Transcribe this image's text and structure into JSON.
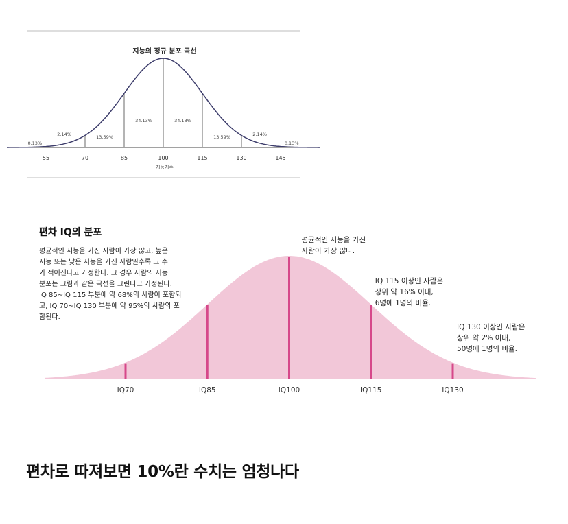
{
  "chart_data": [
    {
      "type": "area",
      "title": "지능의 정규 분포 곡선",
      "xlabel": "지능지수",
      "x_ticks": [
        55,
        70,
        85,
        100,
        115,
        130,
        145
      ],
      "x_range": [
        40,
        160
      ],
      "mean": 100,
      "sd": 15,
      "band_percentages": [
        {
          "from": 40,
          "to": 55,
          "label": "0.13%"
        },
        {
          "from": 55,
          "to": 70,
          "label": "2.14%"
        },
        {
          "from": 70,
          "to": 85,
          "label": "13.59%"
        },
        {
          "from": 85,
          "to": 100,
          "label": "34.13%"
        },
        {
          "from": 100,
          "to": 115,
          "label": "34.13%"
        },
        {
          "from": 115,
          "to": 130,
          "label": "13.59%"
        },
        {
          "from": 130,
          "to": 145,
          "label": "2.14%"
        },
        {
          "from": 145,
          "to": 160,
          "label": "0.13%"
        }
      ],
      "dividers": [
        55,
        70,
        85,
        100,
        115,
        130,
        145
      ],
      "curve_color": "#3d3d6b"
    },
    {
      "type": "area",
      "title": "편차 IQ의 분포",
      "description_lines": [
        "평균적인 지능을 가진 사람이 가장 많고, 높은",
        "지능 또는 낮은 지능을 가진 사람일수록 그 수",
        "가 적어진다고 가정한다. 그 경우 사람의 지능",
        "분포는 그림과 같은 곡선을 그린다고 가정된다.",
        "IQ 85∼IQ 115 부분에 약 68%의 사람이 포함되",
        "고, IQ 70∼IQ 130 부분에 약 95%의 사람의 포",
        "함된다."
      ],
      "x_ticks": [
        {
          "value": 70,
          "label": "IQ70"
        },
        {
          "value": 85,
          "label": "IQ85"
        },
        {
          "value": 100,
          "label": "IQ100"
        },
        {
          "value": 115,
          "label": "IQ115"
        },
        {
          "value": 130,
          "label": "IQ130"
        }
      ],
      "x_range": [
        55,
        145
      ],
      "mean": 100,
      "sd": 15,
      "markers": [
        70,
        85,
        100,
        115,
        130
      ],
      "annotations": [
        {
          "at": 100,
          "lines": [
            "평균적인 지능을 가진",
            "사람이 가장 많다."
          ]
        },
        {
          "at": 115,
          "lines": [
            "IQ 115 이상인 사람은",
            "상위 약 16% 이내,",
            "6명에 1명의 비율."
          ]
        },
        {
          "at": 130,
          "lines": [
            "IQ 130 이상인 사람은",
            "상위 약 2% 이내,",
            "50명에 1명의 비율."
          ]
        }
      ],
      "fill_color": "#f2c7d8",
      "marker_color": "#d6488a"
    }
  ],
  "footer": {
    "caption": "편차로 따져보면 10%란 수치는 엄청나다"
  }
}
